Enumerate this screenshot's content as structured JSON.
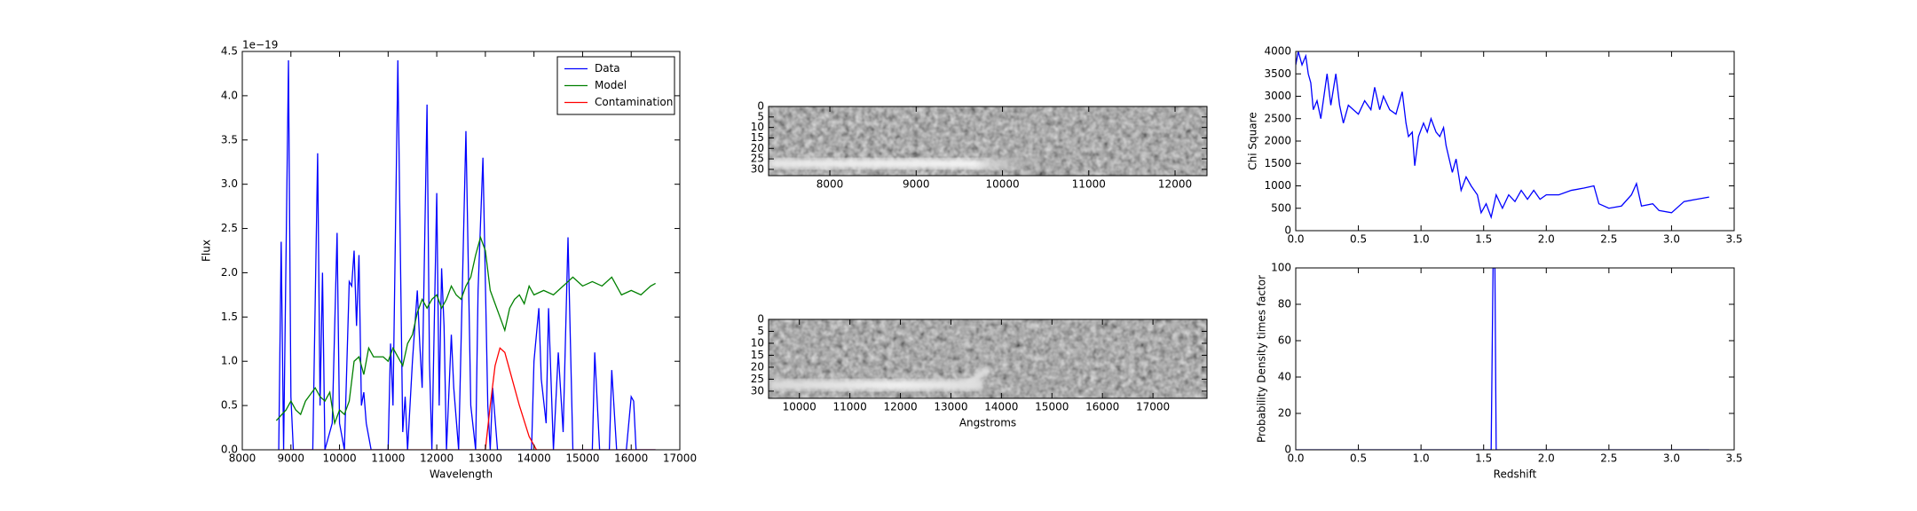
{
  "chart_data": [
    {
      "type": "line",
      "xlabel": "Wavelength",
      "ylabel": "Flux",
      "offset_text": "1e−19",
      "xlim": [
        8000,
        17000
      ],
      "ylim": [
        0,
        4.5
      ],
      "xticks": [
        8000,
        9000,
        10000,
        11000,
        12000,
        13000,
        14000,
        15000,
        16000,
        17000
      ],
      "yticks": [
        {
          "value": 0,
          "label": "0.0"
        },
        0.5,
        {
          "value": 1,
          "label": "1.0"
        },
        1.5,
        {
          "value": 2,
          "label": "2.0"
        },
        2.5,
        {
          "value": 3,
          "label": "3.0"
        },
        3.5,
        {
          "value": 4,
          "label": "4.0"
        },
        4.5
      ],
      "legend": "upper right",
      "series": [
        {
          "name": "Data",
          "color": "#0000ff",
          "x": [
            8750,
            8800,
            8850,
            8950,
            9000,
            9050,
            9450,
            9550,
            9600,
            9650,
            9700,
            9850,
            9950,
            10000,
            10100,
            10200,
            10250,
            10300,
            10350,
            10400,
            10450,
            10500,
            10550,
            10650,
            11000,
            11050,
            11100,
            11200,
            11300,
            11350,
            11400,
            11500,
            11600,
            11650,
            11700,
            11800,
            11850,
            11900,
            12000,
            12050,
            12100,
            12150,
            12200,
            12300,
            12350,
            12450,
            12600,
            12700,
            12800,
            12850,
            12950,
            13050,
            13100,
            13150,
            13250,
            13950,
            14000,
            14100,
            14150,
            14250,
            14300,
            14400,
            14500,
            14600,
            14700,
            14800,
            15200,
            15250,
            15350,
            15550,
            15600,
            15700,
            15900,
            16000,
            16050,
            16100,
            16500
          ],
          "values": [
            0,
            2.35,
            0,
            4.4,
            0.6,
            0,
            0,
            3.35,
            0.5,
            2.0,
            0,
            0.3,
            2.45,
            0.3,
            0,
            1.9,
            1.85,
            2.25,
            1.4,
            2.2,
            0.5,
            0.65,
            0.3,
            0,
            0,
            1.2,
            0.5,
            4.4,
            0.2,
            0.6,
            0,
            1.0,
            1.8,
            1.2,
            0.7,
            3.9,
            1.0,
            0,
            2.9,
            0.5,
            2.05,
            1.4,
            0,
            1.3,
            0.7,
            0,
            3.6,
            0.5,
            0,
            1.8,
            3.3,
            0.5,
            0,
            0.7,
            0,
            0,
            1.0,
            1.6,
            0.8,
            0.3,
            1.6,
            0,
            1.1,
            0.2,
            2.4,
            0,
            0,
            1.1,
            0,
            0,
            0.9,
            0,
            0,
            0.6,
            0.55,
            0,
            0
          ]
        },
        {
          "name": "Model",
          "color": "#008000",
          "x": [
            8700,
            8900,
            9000,
            9100,
            9200,
            9300,
            9500,
            9600,
            9700,
            9800,
            9900,
            10000,
            10100,
            10200,
            10300,
            10400,
            10500,
            10600,
            10700,
            10900,
            11000,
            11100,
            11300,
            11400,
            11500,
            11600,
            11700,
            11800,
            11900,
            12000,
            12100,
            12200,
            12300,
            12400,
            12500,
            12600,
            12700,
            12800,
            12900,
            13000,
            13100,
            13200,
            13300,
            13400,
            13500,
            13600,
            13700,
            13800,
            13900,
            14000,
            14200,
            14400,
            14600,
            14800,
            15000,
            15200,
            15400,
            15600,
            15800,
            16000,
            16200,
            16400,
            16500
          ],
          "values": [
            0.33,
            0.45,
            0.55,
            0.45,
            0.4,
            0.55,
            0.7,
            0.6,
            0.55,
            0.65,
            0.3,
            0.45,
            0.4,
            0.55,
            1.0,
            1.05,
            0.85,
            1.15,
            1.05,
            1.05,
            1.0,
            1.15,
            0.95,
            1.2,
            1.3,
            1.55,
            1.7,
            1.6,
            1.7,
            1.75,
            1.6,
            1.7,
            1.85,
            1.75,
            1.7,
            1.85,
            1.95,
            2.2,
            2.4,
            2.25,
            1.8,
            1.65,
            1.5,
            1.35,
            1.6,
            1.7,
            1.75,
            1.65,
            1.85,
            1.75,
            1.8,
            1.75,
            1.85,
            1.95,
            1.85,
            1.9,
            1.85,
            1.95,
            1.75,
            1.8,
            1.75,
            1.85,
            1.88
          ]
        },
        {
          "name": "Contamination",
          "color": "#ff0000",
          "x": [
            8800,
            13000,
            13100,
            13200,
            13300,
            13400,
            13500,
            13700,
            13900,
            14050,
            16500
          ],
          "values": [
            0,
            0,
            0.5,
            0.95,
            1.15,
            1.1,
            0.9,
            0.5,
            0.15,
            0,
            0
          ]
        }
      ]
    },
    {
      "type": "image",
      "xlim": [
        7290,
        12370
      ],
      "ylim": [
        0,
        33
      ],
      "y_inverted": true,
      "xticks": [
        8000,
        9000,
        10000,
        11000,
        12000
      ],
      "yticks": [
        0,
        5,
        10,
        15,
        20,
        25,
        30
      ]
    },
    {
      "type": "image",
      "xlabel": "Angstroms",
      "xlim": [
        9390,
        18070
      ],
      "ylim": [
        0,
        33
      ],
      "y_inverted": true,
      "xticks": [
        10000,
        11000,
        12000,
        13000,
        14000,
        15000,
        16000,
        17000
      ],
      "yticks": [
        0,
        5,
        10,
        15,
        20,
        25,
        30
      ]
    },
    {
      "type": "line",
      "ylabel": "Chi Square",
      "color": "#0000ff",
      "xlim": [
        0,
        3.5
      ],
      "ylim": [
        0,
        4000
      ],
      "xticks": [
        {
          "value": 0,
          "label": "0.0"
        },
        0.5,
        {
          "value": 1,
          "label": "1.0"
        },
        1.5,
        {
          "value": 2,
          "label": "2.0"
        },
        2.5,
        {
          "value": 3,
          "label": "3.0"
        },
        3.5
      ],
      "yticks": [
        0,
        500,
        1000,
        1500,
        2000,
        2500,
        3000,
        3500,
        4000
      ],
      "x": [
        0,
        0.02,
        0.05,
        0.08,
        0.1,
        0.12,
        0.14,
        0.17,
        0.2,
        0.25,
        0.28,
        0.32,
        0.35,
        0.38,
        0.42,
        0.5,
        0.55,
        0.6,
        0.63,
        0.67,
        0.7,
        0.75,
        0.8,
        0.85,
        0.88,
        0.9,
        0.93,
        0.95,
        0.98,
        1.02,
        1.05,
        1.08,
        1.12,
        1.15,
        1.18,
        1.2,
        1.25,
        1.28,
        1.32,
        1.36,
        1.4,
        1.45,
        1.48,
        1.52,
        1.56,
        1.6,
        1.65,
        1.7,
        1.75,
        1.8,
        1.85,
        1.9,
        1.95,
        2.0,
        2.1,
        2.2,
        2.3,
        2.38,
        2.42,
        2.5,
        2.6,
        2.68,
        2.72,
        2.76,
        2.85,
        2.9,
        3.0,
        3.1,
        3.2,
        3.3
      ],
      "values": [
        3700,
        4000,
        3700,
        3900,
        3500,
        3300,
        2700,
        2900,
        2500,
        3500,
        2800,
        3500,
        2800,
        2400,
        2800,
        2600,
        2900,
        2700,
        3200,
        2700,
        3000,
        2700,
        2600,
        3100,
        2400,
        2100,
        2200,
        1450,
        2100,
        2400,
        2200,
        2500,
        2200,
        2100,
        2300,
        1900,
        1300,
        1600,
        900,
        1200,
        1000,
        800,
        400,
        600,
        300,
        800,
        500,
        800,
        650,
        900,
        700,
        900,
        700,
        800,
        800,
        900,
        950,
        1000,
        600,
        500,
        550,
        800,
        1050,
        550,
        600,
        450,
        400,
        650,
        700,
        750
      ]
    },
    {
      "type": "line",
      "xlabel": "Redshift",
      "ylabel": "Probability Density times factor",
      "color": "#0000ff",
      "xlim": [
        0,
        3.5
      ],
      "ylim": [
        0,
        100
      ],
      "xticks": [
        {
          "value": 0,
          "label": "0.0"
        },
        0.5,
        {
          "value": 1,
          "label": "1.0"
        },
        1.5,
        {
          "value": 2,
          "label": "2.0"
        },
        2.5,
        {
          "value": 3,
          "label": "3.0"
        },
        3.5
      ],
      "yticks": [
        0,
        20,
        40,
        60,
        80,
        100
      ],
      "x": [
        0,
        1.56,
        1.575,
        1.59,
        1.6,
        3.3
      ],
      "values": [
        0,
        0,
        100,
        100,
        0,
        0
      ]
    }
  ]
}
